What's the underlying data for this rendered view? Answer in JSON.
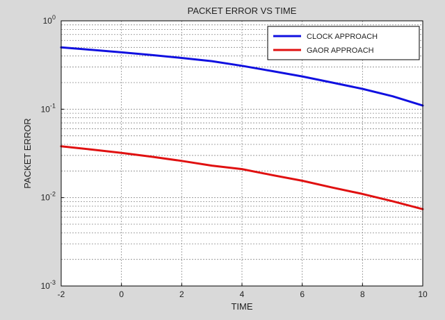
{
  "chart_data": {
    "type": "line",
    "title": "PACKET ERROR VS TIME",
    "xlabel": "TIME",
    "ylabel": "PACKET ERROR",
    "xlim": [
      -2,
      10
    ],
    "ylim": [
      0.001,
      1
    ],
    "yscale": "log",
    "grid": true,
    "legend_position": "top-right",
    "x_ticks": [
      "-2",
      "0",
      "2",
      "4",
      "6",
      "8",
      "10"
    ],
    "y_ticks": [
      {
        "base": "10",
        "exp": "-3",
        "value": 0.001
      },
      {
        "base": "10",
        "exp": "-2",
        "value": 0.01
      },
      {
        "base": "10",
        "exp": "-1",
        "value": 0.1
      },
      {
        "base": "10",
        "exp": "0",
        "value": 1
      }
    ],
    "series": [
      {
        "name": "CLOCK APPROACH",
        "color": "#1010e0",
        "x": [
          -2,
          -1,
          0,
          1,
          2,
          3,
          4,
          5,
          6,
          7,
          8,
          9,
          10
        ],
        "y": [
          0.5,
          0.47,
          0.44,
          0.41,
          0.38,
          0.35,
          0.31,
          0.27,
          0.235,
          0.2,
          0.17,
          0.14,
          0.11
        ]
      },
      {
        "name": "GAOR APPROACH",
        "color": "#e01010",
        "x": [
          -2,
          -1,
          0,
          1,
          2,
          3,
          4,
          5,
          6,
          7,
          8,
          9,
          10
        ],
        "y": [
          0.038,
          0.035,
          0.032,
          0.029,
          0.026,
          0.023,
          0.021,
          0.018,
          0.0155,
          0.013,
          0.011,
          0.0091,
          0.0074
        ]
      }
    ]
  }
}
